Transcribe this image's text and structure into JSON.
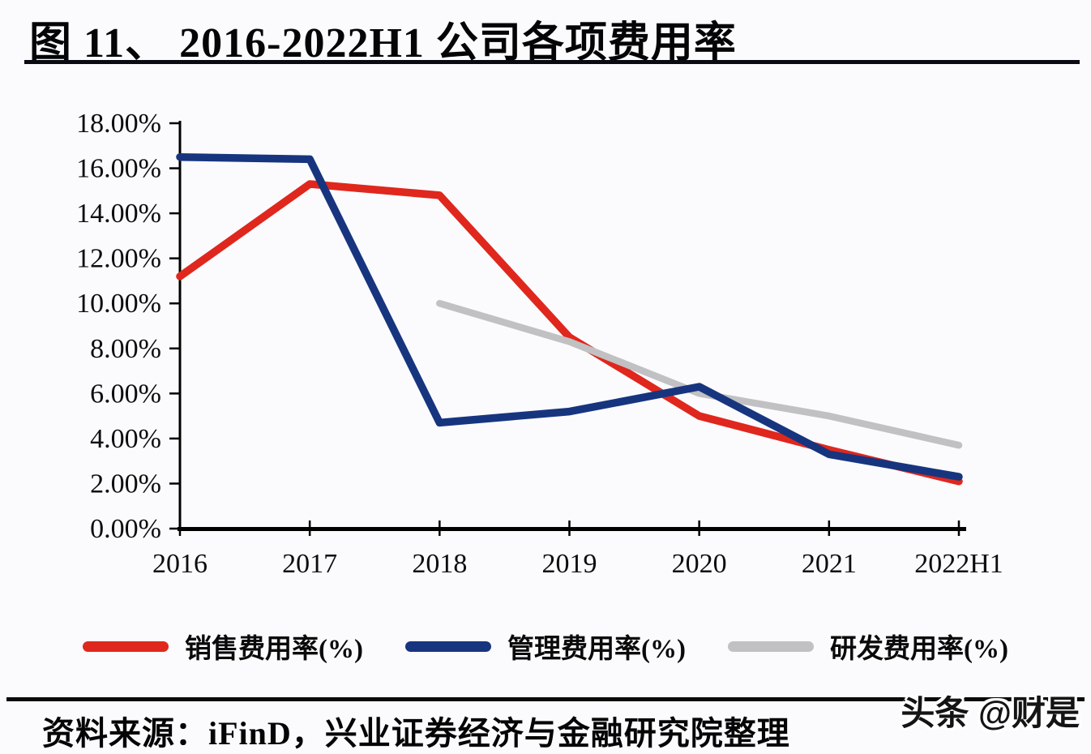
{
  "figure": {
    "title": "图 11、 2016-2022H1 公司各项费用率",
    "source": "资料来源：iFinD，兴业证券经济与金融研究院整理",
    "watermark": "头条 @财是"
  },
  "colors": {
    "rule": "#0a0a12",
    "axis": "#000000",
    "text": "#0d0d0d",
    "background": "#fbfbfd"
  },
  "chart_data": {
    "type": "line",
    "title": "图 11、 2016-2022H1 公司各项费用率",
    "categories": [
      "2016",
      "2017",
      "2018",
      "2019",
      "2020",
      "2021",
      "2022H1"
    ],
    "series": [
      {
        "key": "sales-expense-ratio",
        "name": "销售费用率(%)",
        "color": "#e0271d",
        "width": 9.5,
        "values": [
          11.2,
          15.3,
          14.8,
          8.5,
          5.0,
          3.5,
          2.1
        ]
      },
      {
        "key": "management-expense-ratio",
        "name": "管理费用率(%)",
        "color": "#17357f",
        "width": 9.5,
        "values": [
          16.5,
          16.4,
          4.7,
          5.2,
          6.3,
          3.3,
          2.3
        ]
      },
      {
        "key": "rnd-expense-ratio",
        "name": "研发费用率(%)",
        "color": "#c1c1c3",
        "width": 8.5,
        "values": [
          null,
          null,
          10.0,
          8.3,
          6.0,
          5.0,
          3.7
        ]
      }
    ],
    "draw_order": [
      0,
      2,
      1
    ],
    "ylim": [
      0,
      18
    ],
    "ytick_step": 2,
    "ytick_labels": [
      "0.00%",
      "2.00%",
      "4.00%",
      "6.00%",
      "8.00%",
      "10.00%",
      "12.00%",
      "14.00%",
      "16.00%",
      "18.00%"
    ],
    "xlabel": "",
    "ylabel": "",
    "grid": false,
    "legend_position": "bottom"
  }
}
